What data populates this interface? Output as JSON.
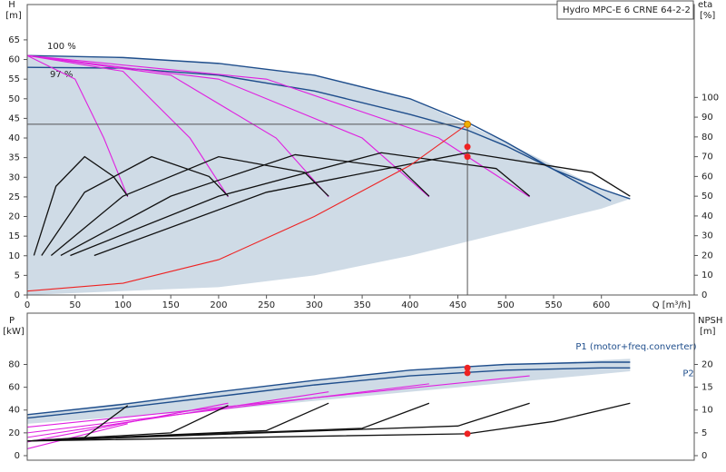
{
  "chart_data": [
    {
      "type": "line",
      "title": "Hydro MPC-E 6 CRNE 64-2-2",
      "ylabel": "H",
      "yunit": "[m]",
      "y2label": "eta",
      "y2unit": "[%]",
      "xlabel": "Q [m³/h]",
      "xlim": [
        0,
        697
      ],
      "xticks": [
        0,
        50,
        100,
        150,
        200,
        250,
        300,
        350,
        400,
        450,
        500,
        550,
        600
      ],
      "ylim": [
        0,
        74
      ],
      "yticks": [
        0,
        5,
        10,
        15,
        20,
        25,
        30,
        35,
        40,
        45,
        50,
        55,
        60,
        65
      ],
      "y2lim": [
        0,
        147
      ],
      "y2ticks": [
        0,
        10,
        20,
        30,
        40,
        50,
        60,
        70,
        80,
        90,
        100
      ],
      "series": [
        {
          "color": "#cfdbe6",
          "x": [
            0,
            100,
            200,
            300,
            400,
            500,
            600,
            630
          ],
          "values": [
            61,
            60.5,
            59,
            56,
            50,
            39,
            27,
            24.5
          ],
          "lower": [
            0,
            1,
            2,
            5,
            10,
            16,
            22,
            24.5
          ]
        },
        {
          "name": "100 %",
          "color": "#1f4e8c",
          "x": [
            0,
            100,
            200,
            300,
            400,
            460,
            500,
            550,
            600,
            630
          ],
          "values": [
            61,
            60.5,
            59,
            56,
            50,
            44,
            39,
            32,
            27,
            24.5
          ]
        },
        {
          "name": "97 %",
          "color": "#1f4e8c",
          "x": [
            0,
            100,
            200,
            300,
            400,
            460,
            500,
            550,
            610
          ],
          "values": [
            58,
            57.8,
            56,
            52,
            46,
            42,
            38,
            32,
            24
          ]
        },
        {
          "color": "#e020e0",
          "x": [
            0,
            50,
            80,
            105
          ],
          "values": [
            61,
            55,
            40,
            25
          ]
        },
        {
          "color": "#e020e0",
          "x": [
            0,
            100,
            170,
            210
          ],
          "values": [
            61,
            57,
            40,
            25
          ]
        },
        {
          "color": "#e020e0",
          "x": [
            0,
            150,
            260,
            315
          ],
          "values": [
            61,
            56,
            40,
            25
          ]
        },
        {
          "color": "#e020e0",
          "x": [
            0,
            200,
            350,
            420
          ],
          "values": [
            61,
            55,
            40,
            25
          ]
        },
        {
          "color": "#e020e0",
          "x": [
            0,
            250,
            430,
            525
          ],
          "values": [
            61,
            55,
            40,
            25
          ]
        },
        {
          "color": "#111111",
          "axis": "y2",
          "x": [
            7,
            30,
            60,
            90,
            105
          ],
          "values": [
            20,
            55,
            70,
            60,
            50
          ]
        },
        {
          "color": "#111111",
          "axis": "y2",
          "x": [
            15,
            60,
            130,
            190,
            210
          ],
          "values": [
            20,
            52,
            70,
            60,
            50
          ]
        },
        {
          "color": "#111111",
          "axis": "y2",
          "x": [
            25,
            100,
            200,
            290,
            315
          ],
          "values": [
            20,
            50,
            70,
            62,
            50
          ]
        },
        {
          "color": "#111111",
          "axis": "y2",
          "x": [
            35,
            150,
            280,
            390,
            420
          ],
          "values": [
            20,
            50,
            71,
            64,
            50
          ]
        },
        {
          "color": "#111111",
          "axis": "y2",
          "x": [
            45,
            200,
            370,
            490,
            525
          ],
          "values": [
            20,
            50,
            72,
            64,
            50
          ]
        },
        {
          "color": "#111111",
          "axis": "y2",
          "x": [
            70,
            250,
            460,
            590,
            630
          ],
          "values": [
            20,
            52,
            72,
            62,
            50
          ]
        },
        {
          "color": "#ee2222",
          "x": [
            0,
            100,
            200,
            300,
            400,
            460
          ],
          "values": [
            1,
            3,
            9,
            20,
            33,
            43.5
          ]
        },
        {
          "color": "#f0b000",
          "marker": true,
          "x": [
            460
          ],
          "values": [
            43.5
          ]
        },
        {
          "color": "#ee2222",
          "marker": true,
          "axis": "y2",
          "x": [
            460,
            460
          ],
          "values": [
            75,
            70
          ]
        }
      ]
    },
    {
      "type": "line",
      "ylabel": "P",
      "yunit": "[kW]",
      "y2label": "NPSH",
      "y2unit": "[m]",
      "xlim": [
        0,
        697
      ],
      "ylim": [
        -4,
        125
      ],
      "yticks": [
        0,
        20,
        40,
        60,
        80
      ],
      "y2lim": [
        -1,
        31.25
      ],
      "y2ticks": [
        0,
        5,
        10,
        15,
        20
      ],
      "series": [
        {
          "color": "#cfdbe6",
          "x": [
            0,
            200,
            400,
            630
          ],
          "values": [
            36,
            56,
            75,
            85
          ],
          "lower": [
            28,
            40,
            56,
            74
          ]
        },
        {
          "name": "P1 (motor+freq.converter)",
          "color": "#1f4e8c",
          "x": [
            0,
            100,
            200,
            300,
            400,
            500,
            600,
            630
          ],
          "values": [
            36,
            45,
            56,
            66,
            75,
            80,
            82,
            82
          ]
        },
        {
          "name": "P2",
          "color": "#1f4e8c",
          "x": [
            0,
            100,
            200,
            300,
            400,
            500,
            600,
            630
          ],
          "values": [
            33,
            42,
            52,
            62,
            70,
            75,
            77,
            77
          ]
        },
        {
          "color": "#e020e0",
          "x": [
            0,
            105
          ],
          "values": [
            6,
            28
          ]
        },
        {
          "color": "#e020e0",
          "x": [
            0,
            210
          ],
          "values": [
            12,
            46
          ]
        },
        {
          "color": "#e020e0",
          "x": [
            0,
            315
          ],
          "values": [
            16,
            56
          ]
        },
        {
          "color": "#e020e0",
          "x": [
            0,
            420
          ],
          "values": [
            20,
            63
          ]
        },
        {
          "color": "#e020e0",
          "x": [
            0,
            525
          ],
          "values": [
            25,
            70
          ]
        },
        {
          "color": "#111111",
          "axis": "y2",
          "x": [
            0,
            60,
            105
          ],
          "values": [
            3.2,
            4,
            11
          ]
        },
        {
          "color": "#111111",
          "axis": "y2",
          "x": [
            0,
            150,
            210
          ],
          "values": [
            3.2,
            5,
            11
          ]
        },
        {
          "color": "#111111",
          "axis": "y2",
          "x": [
            0,
            250,
            315
          ],
          "values": [
            3.2,
            5.5,
            11.5
          ]
        },
        {
          "color": "#111111",
          "axis": "y2",
          "x": [
            0,
            350,
            420
          ],
          "values": [
            3.2,
            6,
            11.5
          ]
        },
        {
          "color": "#111111",
          "axis": "y2",
          "x": [
            0,
            450,
            525
          ],
          "values": [
            3.2,
            6.5,
            11.5
          ]
        },
        {
          "color": "#111111",
          "axis": "y2",
          "x": [
            0,
            460,
            550,
            630
          ],
          "values": [
            3.2,
            4.8,
            7.5,
            11.5
          ]
        },
        {
          "color": "#ee2222",
          "marker": true,
          "x": [
            460,
            460
          ],
          "values": [
            77,
            72.5
          ]
        },
        {
          "color": "#ee2222",
          "marker": true,
          "axis": "y2",
          "x": [
            460
          ],
          "values": [
            4.8
          ]
        }
      ]
    }
  ]
}
